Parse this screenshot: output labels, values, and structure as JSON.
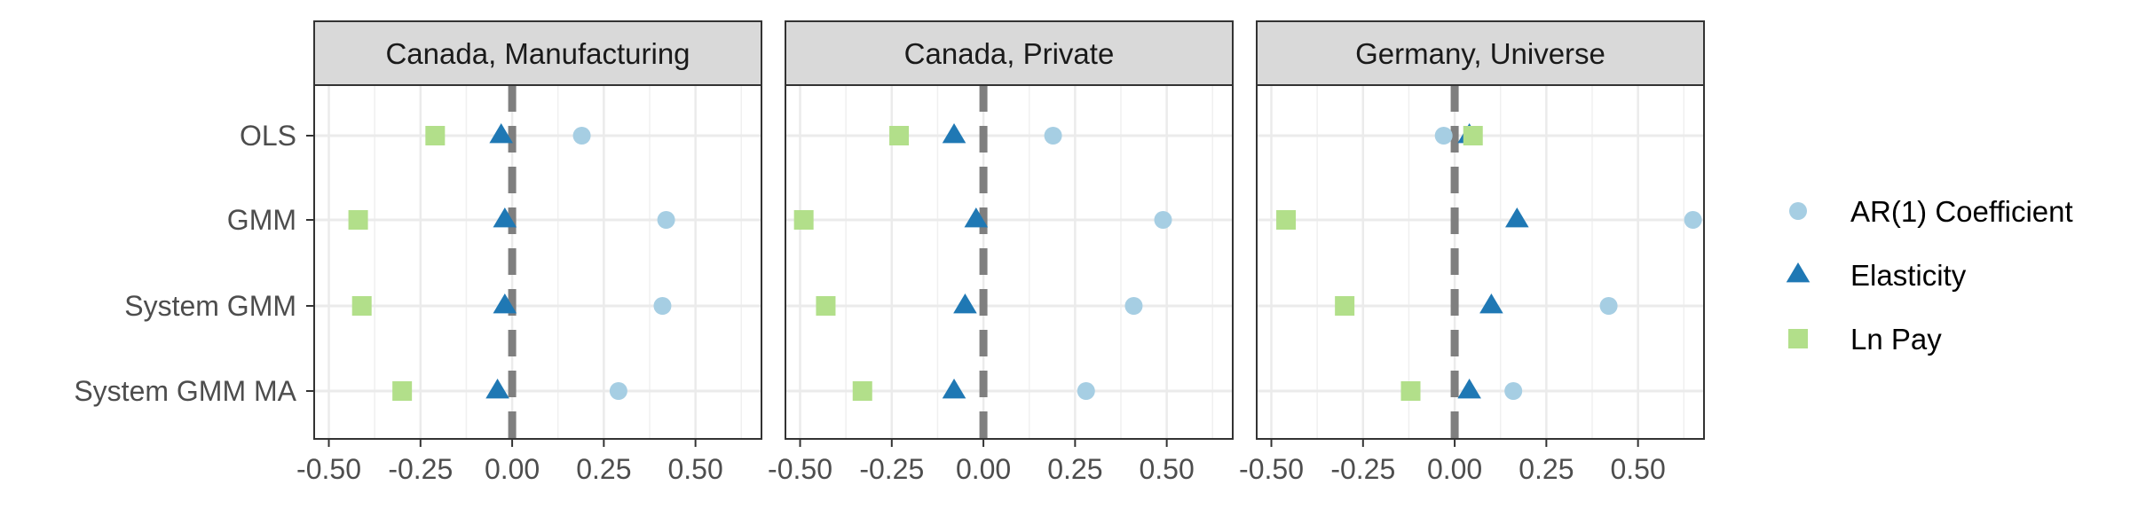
{
  "chart_data": {
    "type": "scatter",
    "title": "",
    "xlabel": "",
    "ylabel": "",
    "xlim": [
      -0.54,
      0.68
    ],
    "x_ticks": [
      -0.5,
      -0.25,
      0.0,
      0.25,
      0.5
    ],
    "x_tick_labels": [
      "-0.50",
      "-0.25",
      "0.00",
      "0.25",
      "0.50"
    ],
    "categories": [
      "OLS",
      "GMM",
      "System GMM",
      "System GMM MA"
    ],
    "reference_line": 0,
    "grid": true,
    "legend_position": "right",
    "series_styles": [
      {
        "name": "AR(1) Coefficient",
        "shape": "circle",
        "color": "#A6CEE3"
      },
      {
        "name": "Elasticity",
        "shape": "triangle",
        "color": "#1F78B4"
      },
      {
        "name": "Ln Pay",
        "shape": "square",
        "color": "#B2DF8A"
      }
    ],
    "panels": [
      {
        "title": "Canada, Manufacturing",
        "series": [
          {
            "name": "AR(1) Coefficient",
            "values": [
              0.19,
              0.42,
              0.41,
              0.29
            ]
          },
          {
            "name": "Elasticity",
            "values": [
              -0.03,
              -0.02,
              -0.02,
              -0.04
            ]
          },
          {
            "name": "Ln Pay",
            "values": [
              -0.21,
              -0.42,
              -0.41,
              -0.3
            ]
          }
        ]
      },
      {
        "title": "Canada, Private",
        "series": [
          {
            "name": "AR(1) Coefficient",
            "values": [
              0.19,
              0.49,
              0.41,
              0.28
            ]
          },
          {
            "name": "Elasticity",
            "values": [
              -0.08,
              -0.02,
              -0.05,
              -0.08
            ]
          },
          {
            "name": "Ln Pay",
            "values": [
              -0.23,
              -0.49,
              -0.43,
              -0.33
            ]
          }
        ]
      },
      {
        "title": "Germany, Universe",
        "series": [
          {
            "name": "AR(1) Coefficient",
            "values": [
              -0.03,
              0.65,
              0.42,
              0.16
            ]
          },
          {
            "name": "Elasticity",
            "values": [
              0.04,
              0.17,
              0.1,
              0.04
            ]
          },
          {
            "name": "Ln Pay",
            "values": [
              0.05,
              -0.46,
              -0.3,
              -0.12
            ]
          }
        ]
      }
    ]
  }
}
